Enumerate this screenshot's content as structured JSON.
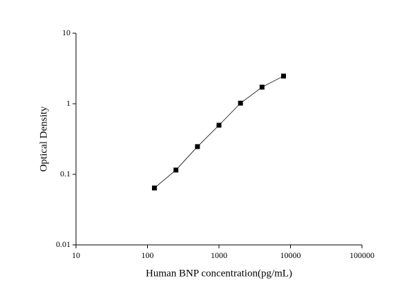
{
  "chart_data": {
    "type": "line",
    "x_label": "Human BNP concentration(pg/mL)",
    "y_label": "Optical Density",
    "x": [
      125,
      250,
      500,
      1000,
      2000,
      4000,
      8000
    ],
    "series": [
      {
        "values": [
          0.064,
          0.115,
          0.247,
          0.497,
          1.02,
          1.72,
          2.47
        ],
        "color": "#000000"
      }
    ],
    "xlog": true,
    "ylog": true,
    "xlim": [
      10,
      100000
    ],
    "ylim": [
      0.01,
      10
    ],
    "xticks": [
      10,
      100,
      1000,
      10000,
      100000
    ],
    "yticks": [
      0.01,
      0.1,
      1,
      10
    ]
  }
}
